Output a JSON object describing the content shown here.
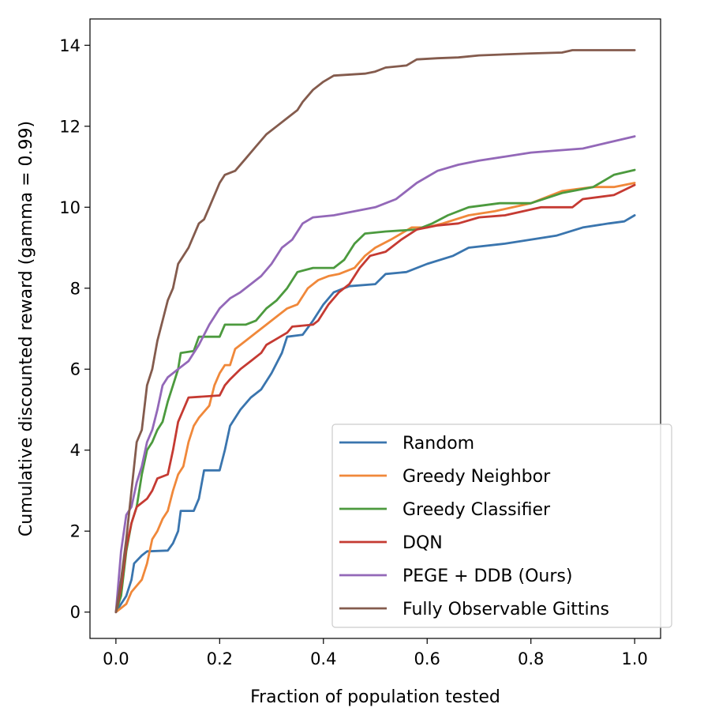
{
  "chart_data": {
    "type": "line",
    "title": "",
    "xlabel": "Fraction of population tested",
    "ylabel": "Cumulative discounted reward (gamma = 0.99)",
    "xlim": [
      -0.05,
      1.05
    ],
    "ylim": [
      -0.65,
      14.65
    ],
    "xticks": [
      0.0,
      0.2,
      0.4,
      0.6,
      0.8,
      1.0
    ],
    "xtick_labels": [
      "0.0",
      "0.2",
      "0.4",
      "0.6",
      "0.8",
      "1.0"
    ],
    "yticks": [
      0,
      2,
      4,
      6,
      8,
      10,
      12,
      14
    ],
    "ytick_labels": [
      "0",
      "2",
      "4",
      "6",
      "8",
      "10",
      "12",
      "14"
    ],
    "grid": false,
    "legend_position": "bottom-right",
    "series": [
      {
        "name": "Random",
        "color": "#3a75ae",
        "points": [
          [
            0,
            0
          ],
          [
            0.01,
            0.2
          ],
          [
            0.02,
            0.4
          ],
          [
            0.03,
            0.8
          ],
          [
            0.035,
            1.2
          ],
          [
            0.05,
            1.4
          ],
          [
            0.06,
            1.5
          ],
          [
            0.1,
            1.52
          ],
          [
            0.11,
            1.7
          ],
          [
            0.12,
            2.0
          ],
          [
            0.125,
            2.5
          ],
          [
            0.15,
            2.5
          ],
          [
            0.16,
            2.8
          ],
          [
            0.17,
            3.5
          ],
          [
            0.2,
            3.5
          ],
          [
            0.21,
            4.0
          ],
          [
            0.22,
            4.6
          ],
          [
            0.24,
            5.0
          ],
          [
            0.26,
            5.3
          ],
          [
            0.28,
            5.5
          ],
          [
            0.3,
            5.9
          ],
          [
            0.32,
            6.4
          ],
          [
            0.33,
            6.8
          ],
          [
            0.36,
            6.85
          ],
          [
            0.38,
            7.2
          ],
          [
            0.4,
            7.6
          ],
          [
            0.42,
            7.9
          ],
          [
            0.45,
            8.05
          ],
          [
            0.5,
            8.1
          ],
          [
            0.52,
            8.35
          ],
          [
            0.56,
            8.4
          ],
          [
            0.6,
            8.6
          ],
          [
            0.65,
            8.8
          ],
          [
            0.68,
            9.0
          ],
          [
            0.75,
            9.1
          ],
          [
            0.8,
            9.2
          ],
          [
            0.85,
            9.3
          ],
          [
            0.9,
            9.5
          ],
          [
            0.95,
            9.6
          ],
          [
            0.98,
            9.65
          ],
          [
            1.0,
            9.8
          ]
        ]
      },
      {
        "name": "Greedy Neighbor",
        "color": "#f0883a",
        "points": [
          [
            0,
            0
          ],
          [
            0.01,
            0.1
          ],
          [
            0.02,
            0.2
          ],
          [
            0.03,
            0.5
          ],
          [
            0.05,
            0.8
          ],
          [
            0.06,
            1.2
          ],
          [
            0.07,
            1.8
          ],
          [
            0.08,
            2.0
          ],
          [
            0.09,
            2.3
          ],
          [
            0.1,
            2.5
          ],
          [
            0.11,
            3.0
          ],
          [
            0.12,
            3.4
          ],
          [
            0.13,
            3.6
          ],
          [
            0.14,
            4.2
          ],
          [
            0.15,
            4.6
          ],
          [
            0.16,
            4.8
          ],
          [
            0.18,
            5.1
          ],
          [
            0.19,
            5.6
          ],
          [
            0.2,
            5.9
          ],
          [
            0.21,
            6.1
          ],
          [
            0.22,
            6.1
          ],
          [
            0.23,
            6.5
          ],
          [
            0.24,
            6.6
          ],
          [
            0.25,
            6.7
          ],
          [
            0.27,
            6.9
          ],
          [
            0.29,
            7.1
          ],
          [
            0.31,
            7.3
          ],
          [
            0.33,
            7.5
          ],
          [
            0.35,
            7.6
          ],
          [
            0.37,
            8.0
          ],
          [
            0.39,
            8.2
          ],
          [
            0.41,
            8.3
          ],
          [
            0.43,
            8.35
          ],
          [
            0.46,
            8.5
          ],
          [
            0.48,
            8.8
          ],
          [
            0.5,
            9.0
          ],
          [
            0.53,
            9.2
          ],
          [
            0.57,
            9.5
          ],
          [
            0.6,
            9.5
          ],
          [
            0.63,
            9.6
          ],
          [
            0.68,
            9.8
          ],
          [
            0.73,
            9.9
          ],
          [
            0.8,
            10.1
          ],
          [
            0.86,
            10.4
          ],
          [
            0.92,
            10.5
          ],
          [
            0.96,
            10.5
          ],
          [
            1.0,
            10.6
          ]
        ]
      },
      {
        "name": "Greedy Classifier",
        "color": "#4c9a3e",
        "points": [
          [
            0,
            0
          ],
          [
            0.01,
            0.4
          ],
          [
            0.02,
            1.5
          ],
          [
            0.03,
            2.2
          ],
          [
            0.04,
            2.6
          ],
          [
            0.05,
            3.4
          ],
          [
            0.06,
            4.0
          ],
          [
            0.07,
            4.2
          ],
          [
            0.08,
            4.5
          ],
          [
            0.09,
            4.7
          ],
          [
            0.1,
            5.2
          ],
          [
            0.11,
            5.6
          ],
          [
            0.12,
            6.0
          ],
          [
            0.125,
            6.4
          ],
          [
            0.15,
            6.45
          ],
          [
            0.16,
            6.8
          ],
          [
            0.2,
            6.8
          ],
          [
            0.21,
            7.1
          ],
          [
            0.25,
            7.1
          ],
          [
            0.27,
            7.2
          ],
          [
            0.29,
            7.5
          ],
          [
            0.31,
            7.7
          ],
          [
            0.33,
            8.0
          ],
          [
            0.35,
            8.4
          ],
          [
            0.38,
            8.5
          ],
          [
            0.42,
            8.5
          ],
          [
            0.44,
            8.7
          ],
          [
            0.46,
            9.1
          ],
          [
            0.48,
            9.35
          ],
          [
            0.52,
            9.4
          ],
          [
            0.58,
            9.45
          ],
          [
            0.61,
            9.6
          ],
          [
            0.64,
            9.8
          ],
          [
            0.68,
            10.0
          ],
          [
            0.74,
            10.1
          ],
          [
            0.8,
            10.1
          ],
          [
            0.86,
            10.35
          ],
          [
            0.92,
            10.5
          ],
          [
            0.96,
            10.8
          ],
          [
            1.0,
            10.92
          ]
        ]
      },
      {
        "name": "DQN",
        "color": "#c53a32",
        "points": [
          [
            0,
            0
          ],
          [
            0.01,
            0.6
          ],
          [
            0.02,
            1.6
          ],
          [
            0.03,
            2.2
          ],
          [
            0.04,
            2.6
          ],
          [
            0.06,
            2.8
          ],
          [
            0.07,
            3.0
          ],
          [
            0.08,
            3.3
          ],
          [
            0.1,
            3.4
          ],
          [
            0.11,
            4.0
          ],
          [
            0.12,
            4.7
          ],
          [
            0.13,
            5.0
          ],
          [
            0.14,
            5.3
          ],
          [
            0.2,
            5.35
          ],
          [
            0.21,
            5.6
          ],
          [
            0.22,
            5.75
          ],
          [
            0.24,
            6.0
          ],
          [
            0.26,
            6.2
          ],
          [
            0.28,
            6.4
          ],
          [
            0.29,
            6.6
          ],
          [
            0.31,
            6.75
          ],
          [
            0.33,
            6.9
          ],
          [
            0.34,
            7.05
          ],
          [
            0.38,
            7.1
          ],
          [
            0.39,
            7.2
          ],
          [
            0.41,
            7.6
          ],
          [
            0.43,
            7.9
          ],
          [
            0.45,
            8.1
          ],
          [
            0.47,
            8.5
          ],
          [
            0.49,
            8.8
          ],
          [
            0.52,
            8.9
          ],
          [
            0.55,
            9.2
          ],
          [
            0.58,
            9.45
          ],
          [
            0.62,
            9.55
          ],
          [
            0.66,
            9.6
          ],
          [
            0.7,
            9.75
          ],
          [
            0.75,
            9.8
          ],
          [
            0.82,
            10.0
          ],
          [
            0.88,
            10.0
          ],
          [
            0.9,
            10.2
          ],
          [
            0.96,
            10.3
          ],
          [
            1.0,
            10.55
          ]
        ]
      },
      {
        "name": "PEGE + DDB (Ours)",
        "color": "#9368b8",
        "points": [
          [
            0,
            0
          ],
          [
            0.01,
            1.5
          ],
          [
            0.02,
            2.4
          ],
          [
            0.03,
            2.6
          ],
          [
            0.04,
            3.2
          ],
          [
            0.05,
            3.6
          ],
          [
            0.06,
            4.2
          ],
          [
            0.07,
            4.5
          ],
          [
            0.08,
            5.0
          ],
          [
            0.09,
            5.6
          ],
          [
            0.1,
            5.8
          ],
          [
            0.12,
            6.0
          ],
          [
            0.14,
            6.2
          ],
          [
            0.16,
            6.6
          ],
          [
            0.18,
            7.1
          ],
          [
            0.2,
            7.5
          ],
          [
            0.22,
            7.75
          ],
          [
            0.24,
            7.9
          ],
          [
            0.26,
            8.1
          ],
          [
            0.28,
            8.3
          ],
          [
            0.3,
            8.6
          ],
          [
            0.32,
            9.0
          ],
          [
            0.34,
            9.2
          ],
          [
            0.36,
            9.6
          ],
          [
            0.38,
            9.75
          ],
          [
            0.42,
            9.8
          ],
          [
            0.46,
            9.9
          ],
          [
            0.5,
            10.0
          ],
          [
            0.54,
            10.2
          ],
          [
            0.58,
            10.6
          ],
          [
            0.62,
            10.9
          ],
          [
            0.66,
            11.05
          ],
          [
            0.7,
            11.15
          ],
          [
            0.75,
            11.25
          ],
          [
            0.8,
            11.35
          ],
          [
            0.85,
            11.4
          ],
          [
            0.9,
            11.45
          ],
          [
            0.95,
            11.6
          ],
          [
            1.0,
            11.75
          ]
        ]
      },
      {
        "name": "Fully Observable Gittins",
        "color": "#845b4d",
        "points": [
          [
            0,
            0
          ],
          [
            0.01,
            0.8
          ],
          [
            0.02,
            1.8
          ],
          [
            0.03,
            3.0
          ],
          [
            0.04,
            4.2
          ],
          [
            0.05,
            4.5
          ],
          [
            0.06,
            5.6
          ],
          [
            0.07,
            6.0
          ],
          [
            0.08,
            6.7
          ],
          [
            0.09,
            7.2
          ],
          [
            0.1,
            7.7
          ],
          [
            0.11,
            8.0
          ],
          [
            0.12,
            8.6
          ],
          [
            0.13,
            8.8
          ],
          [
            0.14,
            9.0
          ],
          [
            0.16,
            9.6
          ],
          [
            0.17,
            9.7
          ],
          [
            0.18,
            10.0
          ],
          [
            0.2,
            10.6
          ],
          [
            0.21,
            10.8
          ],
          [
            0.23,
            10.9
          ],
          [
            0.25,
            11.2
          ],
          [
            0.27,
            11.5
          ],
          [
            0.29,
            11.8
          ],
          [
            0.31,
            12.0
          ],
          [
            0.33,
            12.2
          ],
          [
            0.35,
            12.4
          ],
          [
            0.36,
            12.6
          ],
          [
            0.38,
            12.9
          ],
          [
            0.4,
            13.1
          ],
          [
            0.42,
            13.25
          ],
          [
            0.48,
            13.3
          ],
          [
            0.5,
            13.35
          ],
          [
            0.52,
            13.45
          ],
          [
            0.56,
            13.5
          ],
          [
            0.58,
            13.65
          ],
          [
            0.62,
            13.68
          ],
          [
            0.66,
            13.7
          ],
          [
            0.7,
            13.75
          ],
          [
            0.8,
            13.8
          ],
          [
            0.86,
            13.82
          ],
          [
            0.88,
            13.88
          ],
          [
            1.0,
            13.88
          ]
        ]
      }
    ]
  }
}
